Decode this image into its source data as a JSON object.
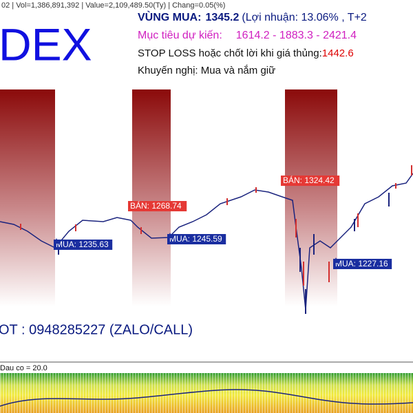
{
  "header": {
    "status": "02 | Vol=1,386,891,392 | Value=2,109,489.50(Ty) | Chang=0.05(%)",
    "ticker": "DEX"
  },
  "info": {
    "buy_zone_label": "VÙNG MUA:",
    "buy_zone_value": "1345.2",
    "profit": "(Lợi nhuận: 13.06%  , T+2",
    "target_label": "Mục tiêu dự kiến:",
    "target_value": "1614.2 - 1883.3 - 2421.4",
    "stop_label": "STOP LOSS hoặc chốt lời khi giá thủng:",
    "stop_value": "1442.6",
    "advice": "Khuyến nghị: Mua và nắm giữ"
  },
  "signals": [
    {
      "text": "BÁN: 1268.74",
      "kind": "sell"
    },
    {
      "text": "MUA: 1235.63",
      "kind": "buy"
    },
    {
      "text": "MUA: 1245.59",
      "kind": "buy"
    },
    {
      "text": "BÁN: 1324.42",
      "kind": "sell"
    },
    {
      "text": "MUA: 1227.16",
      "kind": "buy"
    }
  ],
  "contact": "OT : 0948285227 (ZALO/CALL)",
  "indicator": {
    "label": "Dau co = 20.0"
  }
}
